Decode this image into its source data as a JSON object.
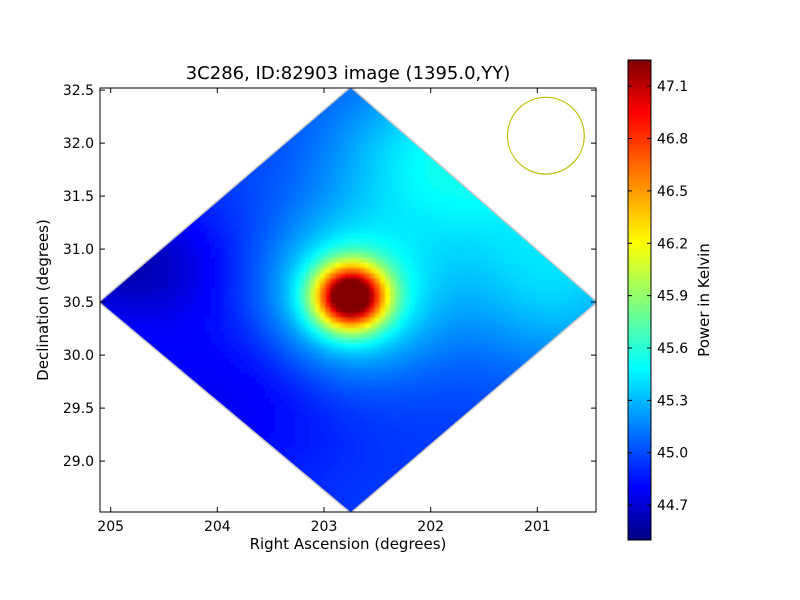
{
  "chart_data": {
    "type": "heatmap",
    "title": "3C286, ID:82903 image (1395.0,YY)",
    "xlabel": "Right Ascension (degrees)",
    "ylabel": "Declination (degrees)",
    "xlim": [
      205.1,
      200.45
    ],
    "ylim": [
      28.52,
      32.52
    ],
    "x_ticks": [
      205,
      204,
      203,
      202,
      201
    ],
    "x_tick_labels": [
      "205",
      "204",
      "203",
      "202",
      "201"
    ],
    "y_ticks": [
      29.0,
      29.5,
      30.0,
      30.5,
      31.0,
      31.5,
      32.0,
      32.5
    ],
    "y_tick_labels": [
      "29.0",
      "29.5",
      "30.0",
      "30.5",
      "31.0",
      "31.5",
      "32.0",
      "32.5"
    ],
    "colorbar": {
      "label": "Power in Kelvin",
      "min": 44.5,
      "max": 47.25,
      "ticks": [
        44.7,
        45.0,
        45.3,
        45.6,
        45.9,
        46.2,
        46.5,
        46.8,
        47.1
      ],
      "tick_labels": [
        "44.7",
        "45.0",
        "45.3",
        "45.6",
        "45.9",
        "46.2",
        "46.5",
        "46.8",
        "47.1"
      ],
      "colormap": "jet"
    },
    "coverage": {
      "shape": "diamond",
      "center_ra": 202.8,
      "center_dec": 30.5,
      "vertices": [
        [
          202.75,
          32.52
        ],
        [
          200.45,
          30.5
        ],
        [
          202.75,
          28.52
        ],
        [
          205.1,
          30.5
        ]
      ]
    },
    "peak": {
      "ra": 202.75,
      "dec": 30.55,
      "value": 47.2
    },
    "beam": {
      "ra": 200.92,
      "dec": 32.07,
      "radius_deg": 0.36,
      "color": "#bfbf00"
    },
    "value_field": {
      "background": 45.0,
      "components": [
        {
          "ra": 202.75,
          "dec": 30.55,
          "amp": 2.2,
          "sigma_ra": 0.22,
          "sigma_dec": 0.2
        },
        {
          "ra": 202.75,
          "dec": 30.55,
          "amp": 0.65,
          "sigma_ra": 0.55,
          "sigma_dec": 0.5
        },
        {
          "ra": 201.8,
          "dec": 31.85,
          "amp": 0.55,
          "sigma_ra": 0.8,
          "sigma_dec": 0.6
        },
        {
          "ra": 200.8,
          "dec": 30.7,
          "amp": 0.4,
          "sigma_ra": 0.7,
          "sigma_dec": 0.6
        },
        {
          "ra": 204.8,
          "dec": 30.85,
          "amp": -0.35,
          "sigma_ra": 0.6,
          "sigma_dec": 0.4
        },
        {
          "ra": 203.9,
          "dec": 29.6,
          "amp": -0.2,
          "sigma_ra": 0.8,
          "sigma_dec": 0.6
        }
      ]
    }
  }
}
